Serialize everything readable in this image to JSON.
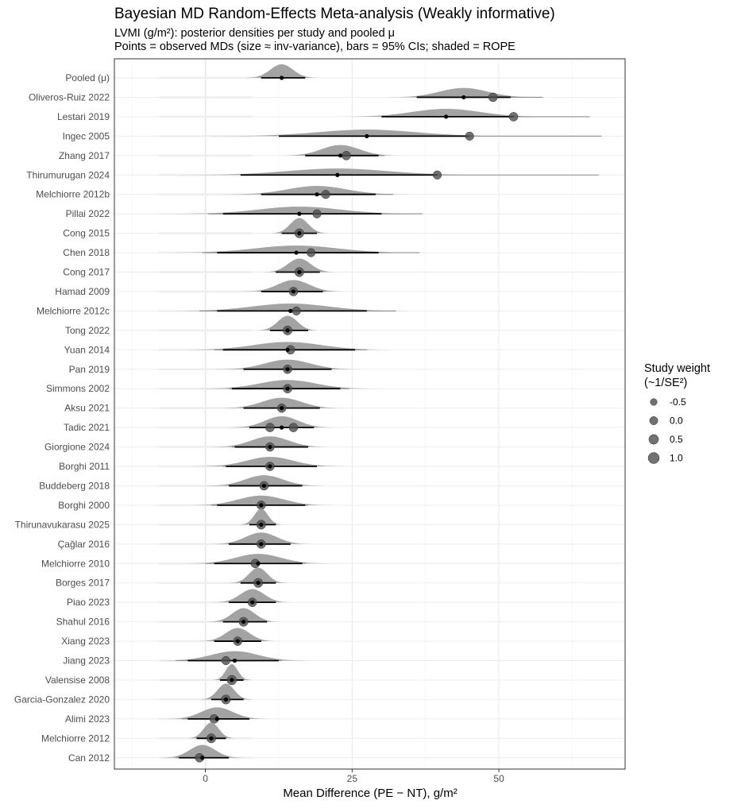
{
  "chart_data": {
    "type": "forest",
    "title": "Bayesian MD Random-Effects Meta-analysis (Weakly informative)",
    "subtitle_lines": [
      "LVMI (g/m²): posterior densities per study and pooled μ",
      "Points = observed MDs (size ≈ inv-variance), bars = 95% CIs; shaded = ROPE"
    ],
    "xlabel": "Mean Difference (PE − NT), g/m²",
    "xlim": [
      -15.5,
      71.5
    ],
    "xticks": [
      0,
      25,
      50
    ],
    "colors": {
      "density": "#9e9e9e",
      "point": "#4d4d4d",
      "line": "#000000",
      "grid": "#ebebeb",
      "rope": "#eeeeee"
    },
    "legend": {
      "title_lines": [
        "Study weight",
        "(~1/SE²)"
      ],
      "entries": [
        {
          "label": "-0.5",
          "value": -0.5
        },
        {
          "label": "0.0",
          "value": 0.0
        },
        {
          "label": "0.5",
          "value": 0.5
        },
        {
          "label": "1.0",
          "value": 1.0
        }
      ]
    },
    "studies": [
      {
        "name": "Pooled (μ)",
        "obs": 13,
        "obs_lo": 9.5,
        "obs_hi": 17,
        "post": 13,
        "post_lo": 9.5,
        "post_hi": 17,
        "weight": null
      },
      {
        "name": "Oliveros-Ruiz 2022",
        "obs": 49,
        "obs_lo": 36,
        "obs_hi": 57.5,
        "post": 44,
        "post_lo": 36,
        "post_hi": 52,
        "weight": 0.7
      },
      {
        "name": "Lestari 2019",
        "obs": 52.5,
        "obs_lo": 30,
        "obs_hi": 65.5,
        "post": 41,
        "post_lo": 30,
        "post_hi": 52.5,
        "weight": 0.7
      },
      {
        "name": "Ingec 2005",
        "obs": 45,
        "obs_lo": 12.5,
        "obs_hi": 67.5,
        "post": 27.5,
        "post_lo": 12.5,
        "post_hi": 45,
        "weight": 0.6
      },
      {
        "name": "Zhang 2017",
        "obs": 24,
        "obs_lo": 17,
        "obs_hi": 30.5,
        "post": 23,
        "post_lo": 17,
        "post_hi": 29.5,
        "weight": 0.7
      },
      {
        "name": "Thirumurugan 2024",
        "obs": 39.5,
        "obs_lo": 6,
        "obs_hi": 67,
        "post": 22.5,
        "post_lo": 6,
        "post_hi": 39.5,
        "weight": 0.6
      },
      {
        "name": "Melchiorre 2012b",
        "obs": 20.5,
        "obs_lo": 9.5,
        "obs_hi": 32,
        "post": 19,
        "post_lo": 9.5,
        "post_hi": 29,
        "weight": 0.6
      },
      {
        "name": "Pillai 2022",
        "obs": 19,
        "obs_lo": 0.5,
        "obs_hi": 37,
        "post": 16,
        "post_lo": 3,
        "post_hi": 30,
        "weight": 0.6
      },
      {
        "name": "Cong 2015",
        "obs": 16,
        "obs_lo": 13,
        "obs_hi": 19,
        "post": 16,
        "post_lo": 13,
        "post_hi": 19,
        "weight": 0.8
      },
      {
        "name": "Chen 2018",
        "obs": 18,
        "obs_lo": -0.5,
        "obs_hi": 36.5,
        "post": 15.5,
        "post_lo": 2,
        "post_hi": 29.5,
        "weight": 0.6
      },
      {
        "name": "Cong 2017",
        "obs": 16,
        "obs_lo": 12,
        "obs_hi": 19.5,
        "post": 16,
        "post_lo": 12,
        "post_hi": 19.5,
        "weight": 0.8
      },
      {
        "name": "Hamad 2009",
        "obs": 15,
        "obs_lo": 9.5,
        "obs_hi": 20.5,
        "post": 15,
        "post_lo": 9.5,
        "post_hi": 20,
        "weight": 0.7
      },
      {
        "name": "Melchiorre 2012c",
        "obs": 15.5,
        "obs_lo": -1,
        "obs_hi": 32.5,
        "post": 14.5,
        "post_lo": 2,
        "post_hi": 27.5,
        "weight": 0.6
      },
      {
        "name": "Tong 2022",
        "obs": 14,
        "obs_lo": 11,
        "obs_hi": 17.5,
        "post": 14,
        "post_lo": 11,
        "post_hi": 17.5,
        "weight": 0.8
      },
      {
        "name": "Yuan 2014",
        "obs": 14.5,
        "obs_lo": 1.5,
        "obs_hi": 27.5,
        "post": 14,
        "post_lo": 3,
        "post_hi": 25.5,
        "weight": 0.7
      },
      {
        "name": "Pan 2019",
        "obs": 14,
        "obs_lo": 6.5,
        "obs_hi": 21.5,
        "post": 14,
        "post_lo": 6.5,
        "post_hi": 21.5,
        "weight": 0.7
      },
      {
        "name": "Simmons 2002",
        "obs": 14,
        "obs_lo": 4,
        "obs_hi": 24.5,
        "post": 14,
        "post_lo": 4.5,
        "post_hi": 23,
        "weight": 0.7
      },
      {
        "name": "Aksu 2021",
        "obs": 13,
        "obs_lo": 6.5,
        "obs_hi": 19.5,
        "post": 13,
        "post_lo": 6.5,
        "post_hi": 19.5,
        "weight": 0.7
      },
      {
        "name": "Tadic 2021",
        "obs": 15,
        "obs_lo": 7.5,
        "obs_hi": 18.5,
        "post": 13,
        "post_lo": 7.5,
        "post_hi": 18.5,
        "weight": 0.7,
        "obs2": 11
      },
      {
        "name": "Giorgione 2024",
        "obs": 11,
        "obs_lo": 4.5,
        "obs_hi": 17.5,
        "post": 11,
        "post_lo": 5,
        "post_hi": 17.5,
        "weight": 0.7
      },
      {
        "name": "Borghi 2011",
        "obs": 11,
        "obs_lo": 3,
        "obs_hi": 19,
        "post": 11,
        "post_lo": 3.5,
        "post_hi": 19,
        "weight": 0.7
      },
      {
        "name": "Buddeberg 2018",
        "obs": 10,
        "obs_lo": 4,
        "obs_hi": 16.5,
        "post": 10,
        "post_lo": 4,
        "post_hi": 16.5,
        "weight": 0.7
      },
      {
        "name": "Borghi 2000",
        "obs": 9.5,
        "obs_lo": 1,
        "obs_hi": 17.5,
        "post": 9.5,
        "post_lo": 2,
        "post_hi": 17,
        "weight": 0.7
      },
      {
        "name": "Thirunavukarasu 2025",
        "obs": 9.5,
        "obs_lo": 7.5,
        "obs_hi": 12,
        "post": 9.5,
        "post_lo": 7.5,
        "post_hi": 12,
        "weight": 0.8
      },
      {
        "name": "Çağlar 2016",
        "obs": 9.5,
        "obs_lo": 4,
        "obs_hi": 14.5,
        "post": 9.5,
        "post_lo": 4,
        "post_hi": 14.5,
        "weight": 0.7
      },
      {
        "name": "Melchiorre 2010",
        "obs": 8.5,
        "obs_lo": 0,
        "obs_hi": 17,
        "post": 9,
        "post_lo": 1.5,
        "post_hi": 16.5,
        "weight": 0.7
      },
      {
        "name": "Borges 2017",
        "obs": 9,
        "obs_lo": 6,
        "obs_hi": 12,
        "post": 9,
        "post_lo": 6,
        "post_hi": 12,
        "weight": 0.8
      },
      {
        "name": "Piao 2023",
        "obs": 8,
        "obs_lo": 4,
        "obs_hi": 12,
        "post": 8,
        "post_lo": 4,
        "post_hi": 12,
        "weight": 0.7
      },
      {
        "name": "Shahul 2016",
        "obs": 6.5,
        "obs_lo": 3,
        "obs_hi": 10.5,
        "post": 6.5,
        "post_lo": 3,
        "post_hi": 10.5,
        "weight": 0.8
      },
      {
        "name": "Xiang 2023",
        "obs": 5.5,
        "obs_lo": 1.5,
        "obs_hi": 9.5,
        "post": 5.5,
        "post_lo": 1.5,
        "post_hi": 9.5,
        "weight": 0.7
      },
      {
        "name": "Jiang 2023",
        "obs": 3.5,
        "obs_lo": -5,
        "obs_hi": 13,
        "post": 5,
        "post_lo": -3,
        "post_hi": 12.5,
        "weight": 0.6
      },
      {
        "name": "Valensise 2008",
        "obs": 4.5,
        "obs_lo": 2.5,
        "obs_hi": 6.5,
        "post": 4.5,
        "post_lo": 2.5,
        "post_hi": 6.5,
        "weight": 0.9
      },
      {
        "name": "Garcia-Gonzalez 2020",
        "obs": 3.5,
        "obs_lo": 1,
        "obs_hi": 6.5,
        "post": 3.5,
        "post_lo": 1,
        "post_hi": 6.5,
        "weight": 0.8
      },
      {
        "name": "Alimi 2023",
        "obs": 1.5,
        "obs_lo": -4,
        "obs_hi": 7.5,
        "post": 2,
        "post_lo": -3,
        "post_hi": 7.5,
        "weight": 0.7
      },
      {
        "name": "Melchiorre 2012",
        "obs": 1,
        "obs_lo": -1.5,
        "obs_hi": 3.5,
        "post": 1,
        "post_lo": -1.5,
        "post_hi": 3.5,
        "weight": 0.8
      },
      {
        "name": "Can 2012",
        "obs": -1,
        "obs_lo": -5,
        "obs_hi": 4,
        "post": -0.5,
        "post_lo": -4.5,
        "post_hi": 4,
        "weight": 0.7
      }
    ]
  }
}
